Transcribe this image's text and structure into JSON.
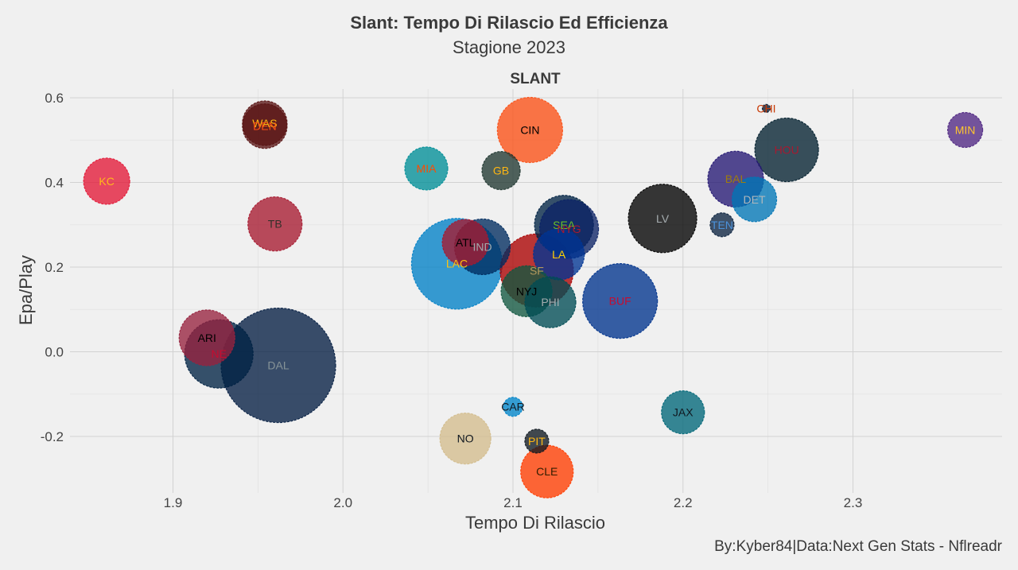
{
  "header": {
    "title": "Slant: Tempo Di Rilascio Ed Efficienza",
    "subtitle": "Stagione 2023"
  },
  "caption": "By:Kyber84|Data:Next Gen Stats - Nflreadr",
  "chart_data": {
    "type": "scatter",
    "facet_label": "SLANT",
    "xlabel": "Tempo Di Rilascio",
    "ylabel": "Epa/Play",
    "xlim": [
      1.84,
      2.39
    ],
    "ylim": [
      -0.31,
      0.65
    ],
    "x_ticks": [
      "1.9",
      "2.0",
      "2.1",
      "2.2",
      "2.3"
    ],
    "x_tick_values": [
      1.9,
      2.0,
      2.1,
      2.2,
      2.3
    ],
    "y_ticks": [
      "-0.2",
      "0.0",
      "0.2",
      "0.4",
      "0.6"
    ],
    "y_tick_values": [
      -0.2,
      0.0,
      0.2,
      0.4,
      0.6
    ],
    "grid": true,
    "size_encoding": "bubble radius",
    "points": [
      {
        "team": "KC",
        "x": 1.861,
        "y": 0.403,
        "size": 29,
        "fill": "#E31837",
        "text": "#FFB81C"
      },
      {
        "team": "WAS",
        "x": 1.954,
        "y": 0.54,
        "size": 28,
        "fill": "#5A1414",
        "text": "#FFB612"
      },
      {
        "team": "DEN",
        "x": 1.954,
        "y": 0.533,
        "size": 28,
        "fill": "#5A1414",
        "text": "#FB4F14"
      },
      {
        "team": "TB",
        "x": 1.96,
        "y": 0.302,
        "size": 34,
        "fill": "#A71930",
        "text": "#34302B"
      },
      {
        "team": "ARI",
        "x": 1.92,
        "y": 0.033,
        "size": 35,
        "fill": "#97233F",
        "text": "#000000"
      },
      {
        "team": "NE",
        "x": 1.927,
        "y": -0.005,
        "size": 43,
        "fill": "#002244",
        "text": "#C60C30"
      },
      {
        "team": "DAL",
        "x": 1.962,
        "y": -0.032,
        "size": 72,
        "fill": "#041E42",
        "text": "#869397"
      },
      {
        "team": "MIA",
        "x": 2.049,
        "y": 0.433,
        "size": 27,
        "fill": "#008E97",
        "text": "#FC4C02"
      },
      {
        "team": "GB",
        "x": 2.093,
        "y": 0.428,
        "size": 24,
        "fill": "#203731",
        "text": "#FFB612"
      },
      {
        "team": "CIN",
        "x": 2.11,
        "y": 0.524,
        "size": 41,
        "fill": "#FB4F14",
        "text": "#000000"
      },
      {
        "team": "ATL",
        "x": 2.072,
        "y": 0.258,
        "size": 29,
        "fill": "#A71930",
        "text": "#000000"
      },
      {
        "team": "IND",
        "x": 2.082,
        "y": 0.248,
        "size": 35,
        "fill": "#002C5F",
        "text": "#A2AAAD"
      },
      {
        "team": "LAC",
        "x": 2.067,
        "y": 0.208,
        "size": 57,
        "fill": "#0080C6",
        "text": "#FFC20E"
      },
      {
        "team": "SEA",
        "x": 2.13,
        "y": 0.3,
        "size": 37,
        "fill": "#002244",
        "text": "#69BE28"
      },
      {
        "team": "NYG",
        "x": 2.133,
        "y": 0.29,
        "size": 37,
        "fill": "#0B2265",
        "text": "#A71930"
      },
      {
        "team": "LA",
        "x": 2.127,
        "y": 0.23,
        "size": 32,
        "fill": "#003594",
        "text": "#FFD100"
      },
      {
        "team": "SF",
        "x": 2.114,
        "y": 0.192,
        "size": 46,
        "fill": "#AA0000",
        "text": "#B3995D"
      },
      {
        "team": "NYJ",
        "x": 2.108,
        "y": 0.143,
        "size": 32,
        "fill": "#125740",
        "text": "#000000"
      },
      {
        "team": "PHI",
        "x": 2.122,
        "y": 0.117,
        "size": 32,
        "fill": "#004C54",
        "text": "#A5ACAF"
      },
      {
        "team": "BUF",
        "x": 2.163,
        "y": 0.12,
        "size": 47,
        "fill": "#00338D",
        "text": "#C60C30"
      },
      {
        "team": "LV",
        "x": 2.188,
        "y": 0.315,
        "size": 43,
        "fill": "#000000",
        "text": "#A5ACAF"
      },
      {
        "team": "TEN",
        "x": 2.223,
        "y": 0.3,
        "size": 15,
        "fill": "#0C2340",
        "text": "#4B92DB"
      },
      {
        "team": "BAL",
        "x": 2.231,
        "y": 0.408,
        "size": 35,
        "fill": "#241773",
        "text": "#9E7C0C"
      },
      {
        "team": "DET",
        "x": 2.242,
        "y": 0.36,
        "size": 28,
        "fill": "#0076B6",
        "text": "#B0B7BC"
      },
      {
        "team": "HOU",
        "x": 2.261,
        "y": 0.477,
        "size": 40,
        "fill": "#03202F",
        "text": "#A71930"
      },
      {
        "team": "CHI",
        "x": 2.249,
        "y": 0.575,
        "size": 5,
        "fill": "#0B162A",
        "text": "#C83803"
      },
      {
        "team": "MIN",
        "x": 2.366,
        "y": 0.524,
        "size": 22,
        "fill": "#4F2683",
        "text": "#FFC62F"
      },
      {
        "team": "CAR",
        "x": 2.1,
        "y": -0.13,
        "size": 12,
        "fill": "#0085CA",
        "text": "#101820"
      },
      {
        "team": "JAX",
        "x": 2.2,
        "y": -0.143,
        "size": 27,
        "fill": "#006778",
        "text": "#101820"
      },
      {
        "team": "NO",
        "x": 2.072,
        "y": -0.205,
        "size": 32,
        "fill": "#D3BC8D",
        "text": "#101820"
      },
      {
        "team": "PIT",
        "x": 2.114,
        "y": -0.211,
        "size": 15,
        "fill": "#101820",
        "text": "#FFB612"
      },
      {
        "team": "CLE",
        "x": 2.12,
        "y": -0.283,
        "size": 33,
        "fill": "#FF3C00",
        "text": "#311D00"
      }
    ]
  }
}
